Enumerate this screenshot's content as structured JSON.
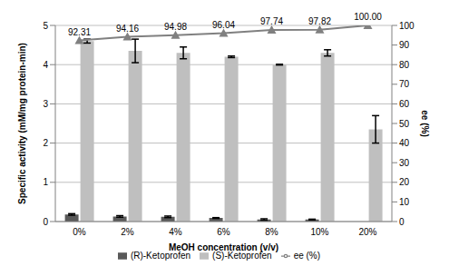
{
  "chart_data": {
    "type": "bar",
    "categories": [
      "0%",
      "2%",
      "4%",
      "6%",
      "8%",
      "10%",
      "20%"
    ],
    "x_label": "MeOH concentration (v/v)",
    "y_label": "Specific activity (mM/mg protein-min)",
    "y2_label": "ee (%)",
    "ylim": [
      0,
      5
    ],
    "yticks": [
      0,
      1,
      2,
      3,
      4,
      5
    ],
    "y2lim": [
      0,
      100
    ],
    "y2ticks": [
      0,
      10,
      20,
      30,
      40,
      50,
      60,
      70,
      80,
      90,
      100
    ],
    "grid": true,
    "legend": "bottom",
    "series": [
      {
        "name": "(R)-Ketoprofen",
        "type": "bar",
        "color": "#595959",
        "values": [
          0.18,
          0.13,
          0.12,
          0.09,
          0.05,
          0.05,
          0
        ],
        "error": [
          0.02,
          0.02,
          0.02,
          0.01,
          0.02,
          0.01,
          0
        ]
      },
      {
        "name": "(S)-Ketoprofen",
        "type": "bar",
        "color": "#bfbfbf",
        "values": [
          4.6,
          4.35,
          4.3,
          4.2,
          4.0,
          4.3,
          2.35
        ],
        "error": [
          0.05,
          0.3,
          0.15,
          0.02,
          0.01,
          0.08,
          0.35
        ]
      },
      {
        "name": "ee (%)",
        "type": "line",
        "axis": "y2",
        "color": "#808080",
        "marker": "triangle",
        "data_labels": true,
        "values": [
          92.31,
          94.16,
          94.98,
          96.04,
          97.74,
          97.82,
          100
        ],
        "value_labels": [
          "92.31",
          "94.16",
          "94.98",
          "96.04",
          "97.74",
          "97.82",
          "100.00"
        ]
      }
    ]
  }
}
